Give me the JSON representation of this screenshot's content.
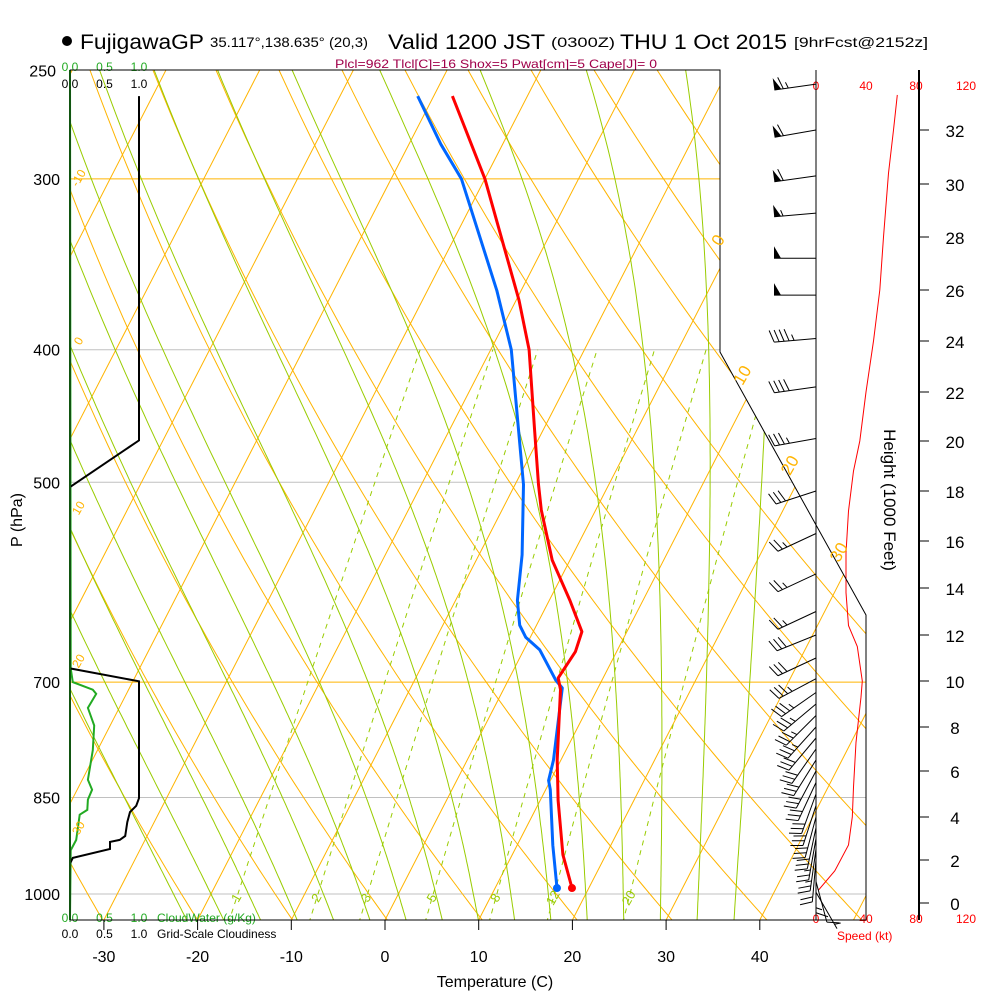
{
  "header": {
    "station": "FujigawaGP",
    "coords": "35.117°,138.635° (20,3)",
    "valid": "Valid 1200 JST",
    "utc": "(0300Z)",
    "date": "THU 1 Oct 2015",
    "forecast": "[9hrFcst@2152z]"
  },
  "indices": "Plcl=962 Tlcl[C]=16 Shox=5 Pwat[cm]=5 Cape[J]= 0",
  "chart_data": {
    "type": "skewt",
    "pressure_axis": {
      "label": "P (hPa)",
      "ticks": [
        "250",
        "300",
        "400",
        "500",
        "700",
        "850",
        "1000"
      ]
    },
    "temperature_axis": {
      "label": "Temperature (C)",
      "ticks": [
        "-30",
        "-20",
        "-10",
        "0",
        "10",
        "20",
        "30",
        "40"
      ]
    },
    "temperature_profile": [
      {
        "p": 990,
        "t": 18.2
      },
      {
        "p": 936,
        "t": 15.4
      },
      {
        "p": 854,
        "t": 11.9
      },
      {
        "p": 798,
        "t": 9.6
      },
      {
        "p": 709,
        "t": 6.1
      },
      {
        "p": 695,
        "t": 5.2
      },
      {
        "p": 665,
        "t": 5.6
      },
      {
        "p": 643,
        "t": 5.2
      },
      {
        "p": 610,
        "t": 2.2
      },
      {
        "p": 570,
        "t": -1.9
      },
      {
        "p": 524,
        "t": -5.8
      },
      {
        "p": 502,
        "t": -7.5
      },
      {
        "p": 458,
        "t": -10.9
      },
      {
        "p": 400,
        "t": -15.9
      },
      {
        "p": 368,
        "t": -19.7
      },
      {
        "p": 300,
        "t": -30.0
      },
      {
        "p": 274,
        "t": -35.2
      },
      {
        "p": 261,
        "t": -38.0
      }
    ],
    "dewpoint_profile": [
      {
        "p": 990,
        "t": 16.6
      },
      {
        "p": 921,
        "t": 13.8
      },
      {
        "p": 839,
        "t": 10.5
      },
      {
        "p": 826,
        "t": 9.8
      },
      {
        "p": 798,
        "t": 9.2
      },
      {
        "p": 707,
        "t": 6.2
      },
      {
        "p": 698,
        "t": 5.1
      },
      {
        "p": 663,
        "t": 1.7
      },
      {
        "p": 649,
        "t": -0.5
      },
      {
        "p": 636,
        "t": -1.8
      },
      {
        "p": 610,
        "t": -3.4
      },
      {
        "p": 565,
        "t": -5.4
      },
      {
        "p": 502,
        "t": -9.1
      },
      {
        "p": 474,
        "t": -11.3
      },
      {
        "p": 400,
        "t": -17.8
      },
      {
        "p": 362,
        "t": -22.6
      },
      {
        "p": 300,
        "t": -32.5
      },
      {
        "p": 283,
        "t": -36.6
      },
      {
        "p": 261,
        "t": -41.7
      }
    ],
    "isotherm_labels": [
      "0",
      "10",
      "20",
      "30"
    ],
    "left_labels": [
      "-10",
      "0",
      "10",
      "20",
      "30"
    ],
    "mixing_ratio_labels": [
      "1",
      "2",
      "3",
      "5",
      "8",
      "12",
      "20"
    ],
    "cloud_panel": {
      "cloudwater_ticks": [
        "0.0",
        "0.5",
        "1.0"
      ],
      "cloudiness_ticks": [
        "0.0",
        "0.5",
        "1.0"
      ],
      "cloudwater_label": "CloudWater (g/Kg)",
      "cloudiness_label": "Grid-Scale Cloudiness",
      "cloudiness": [
        {
          "p": 261,
          "v": 1.0
        },
        {
          "p": 466,
          "v": 1.0
        },
        {
          "p": 504,
          "v": 0
        },
        {
          "p": 684,
          "v": 0
        },
        {
          "p": 699,
          "v": 1.0
        },
        {
          "p": 851,
          "v": 1.0
        },
        {
          "p": 862,
          "v": 0.96
        },
        {
          "p": 871,
          "v": 0.87
        },
        {
          "p": 886,
          "v": 0.83
        },
        {
          "p": 907,
          "v": 0.8
        },
        {
          "p": 913,
          "v": 0.72
        },
        {
          "p": 916,
          "v": 0.58
        },
        {
          "p": 927,
          "v": 0.58
        },
        {
          "p": 941,
          "v": 0.04
        },
        {
          "p": 950,
          "v": 0
        }
      ],
      "cloudwater": [
        {
          "p": 250,
          "v": 0
        },
        {
          "p": 684,
          "v": 0.01
        },
        {
          "p": 700,
          "v": 0.04
        },
        {
          "p": 709,
          "v": 0.33
        },
        {
          "p": 714,
          "v": 0.38
        },
        {
          "p": 731,
          "v": 0.26
        },
        {
          "p": 753,
          "v": 0.35
        },
        {
          "p": 785,
          "v": 0.33
        },
        {
          "p": 825,
          "v": 0.26
        },
        {
          "p": 839,
          "v": 0.32
        },
        {
          "p": 853,
          "v": 0.26
        },
        {
          "p": 868,
          "v": 0.25
        },
        {
          "p": 875,
          "v": 0.14
        },
        {
          "p": 913,
          "v": 0.09
        },
        {
          "p": 929,
          "v": 0.01
        },
        {
          "p": 1040,
          "v": 0
        }
      ]
    },
    "wind_panel": {
      "speed_label": "Speed (kt)",
      "speed_ticks": [
        "0",
        "40",
        "80",
        "120"
      ],
      "height_label": "Height (1000 Feet)",
      "height_ticks": [
        "0",
        "2",
        "4",
        "6",
        "8",
        "10",
        "12",
        "14",
        "16",
        "18",
        "20",
        "22",
        "24",
        "26",
        "28",
        "30",
        "32"
      ],
      "speed_profile": [
        {
          "h": 0.6,
          "kt": 2
        },
        {
          "h": 1.5,
          "kt": 15
        },
        {
          "h": 2.7,
          "kt": 26
        },
        {
          "h": 4.0,
          "kt": 29
        },
        {
          "h": 5.3,
          "kt": 30
        },
        {
          "h": 7.3,
          "kt": 32
        },
        {
          "h": 9.3,
          "kt": 36
        },
        {
          "h": 10.0,
          "kt": 37
        },
        {
          "h": 11.5,
          "kt": 33
        },
        {
          "h": 12.4,
          "kt": 26
        },
        {
          "h": 13.8,
          "kt": 24
        },
        {
          "h": 15.5,
          "kt": 24
        },
        {
          "h": 17.2,
          "kt": 26
        },
        {
          "h": 18.8,
          "kt": 30
        },
        {
          "h": 20.0,
          "kt": 35
        },
        {
          "h": 22.0,
          "kt": 40
        },
        {
          "h": 24.0,
          "kt": 46
        },
        {
          "h": 26.0,
          "kt": 51
        },
        {
          "h": 28.0,
          "kt": 54
        },
        {
          "h": 30.4,
          "kt": 58
        },
        {
          "h": 32.0,
          "kt": 62
        },
        {
          "h": 33.3,
          "kt": 65
        }
      ],
      "barbs": [
        {
          "h": 33.7,
          "kt": 65,
          "dir": 262
        },
        {
          "h": 32.0,
          "kt": 62,
          "dir": 260
        },
        {
          "h": 30.3,
          "kt": 58,
          "dir": 262
        },
        {
          "h": 28.9,
          "kt": 54,
          "dir": 265
        },
        {
          "h": 27.2,
          "kt": 52,
          "dir": 270
        },
        {
          "h": 25.8,
          "kt": 50,
          "dir": 270
        },
        {
          "h": 24.1,
          "kt": 46,
          "dir": 265
        },
        {
          "h": 22.2,
          "kt": 40,
          "dir": 262
        },
        {
          "h": 20.1,
          "kt": 35,
          "dir": 260
        },
        {
          "h": 18.0,
          "kt": 28,
          "dir": 252
        },
        {
          "h": 16.3,
          "kt": 25,
          "dir": 245
        },
        {
          "h": 14.6,
          "kt": 24,
          "dir": 245
        },
        {
          "h": 13.0,
          "kt": 25,
          "dir": 245
        },
        {
          "h": 12.0,
          "kt": 28,
          "dir": 248
        },
        {
          "h": 11.0,
          "kt": 32,
          "dir": 245
        },
        {
          "h": 10.1,
          "kt": 35,
          "dir": 242
        },
        {
          "h": 9.5,
          "kt": 35,
          "dir": 235
        },
        {
          "h": 9.0,
          "kt": 35,
          "dir": 230
        },
        {
          "h": 8.5,
          "kt": 34,
          "dir": 225
        },
        {
          "h": 8.0,
          "kt": 33,
          "dir": 222
        },
        {
          "h": 7.5,
          "kt": 32,
          "dir": 220
        },
        {
          "h": 7.0,
          "kt": 31,
          "dir": 215
        },
        {
          "h": 6.5,
          "kt": 31,
          "dir": 212
        },
        {
          "h": 6.0,
          "kt": 30,
          "dir": 208
        },
        {
          "h": 5.5,
          "kt": 30,
          "dir": 205
        },
        {
          "h": 5.0,
          "kt": 30,
          "dir": 200
        },
        {
          "h": 4.5,
          "kt": 29,
          "dir": 198
        },
        {
          "h": 4.0,
          "kt": 29,
          "dir": 195
        },
        {
          "h": 3.5,
          "kt": 28,
          "dir": 192
        },
        {
          "h": 3.0,
          "kt": 27,
          "dir": 190
        },
        {
          "h": 2.5,
          "kt": 24,
          "dir": 188
        },
        {
          "h": 2.0,
          "kt": 20,
          "dir": 185
        },
        {
          "h": 1.5,
          "kt": 15,
          "dir": 180
        },
        {
          "h": 1.0,
          "kt": 8,
          "dir": 165
        },
        {
          "h": 0.5,
          "kt": 4,
          "dir": 150
        }
      ]
    },
    "colors": {
      "temperature": "#ff0000",
      "dewpoint": "#0066ff",
      "isotherm": "#ffb400",
      "moist_adiabat": "#99cc00",
      "cloudwater": "#22aa22",
      "indices": "#a0004a",
      "speed": "#ff0000"
    }
  }
}
